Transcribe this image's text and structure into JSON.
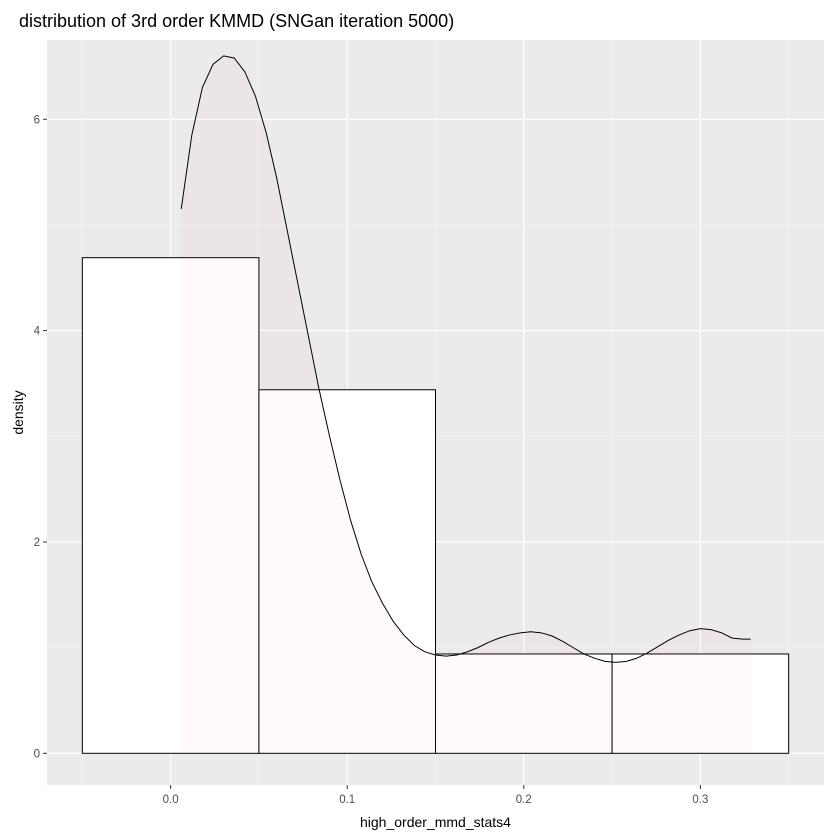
{
  "chart_data": {
    "type": "histogram",
    "title": "distribution of 3rd order KMMD (SNGan iteration 5000)",
    "xlabel": "high_order_mmd_stats4",
    "ylabel": "density",
    "xlim": [
      -0.07,
      0.37
    ],
    "ylim": [
      -0.3,
      6.75
    ],
    "x_ticks": [
      0.0,
      0.1,
      0.2,
      0.3
    ],
    "x_tick_labels": [
      "0.0",
      "0.1",
      "0.2",
      "0.3"
    ],
    "x_minor_ticks": [
      -0.05,
      0.05,
      0.15,
      0.25,
      0.35
    ],
    "y_ticks": [
      0,
      2,
      4,
      6
    ],
    "y_tick_labels": [
      "0",
      "2",
      "4",
      "6"
    ],
    "y_minor_ticks": [
      1,
      3,
      5
    ],
    "grid": true,
    "bins": [
      {
        "x0": -0.05,
        "x1": 0.05,
        "density": 4.69
      },
      {
        "x0": 0.05,
        "x1": 0.15,
        "density": 3.44
      },
      {
        "x0": 0.15,
        "x1": 0.25,
        "density": 0.94
      },
      {
        "x0": 0.25,
        "x1": 0.35,
        "density": 0.94
      }
    ],
    "density_curve": {
      "x": [
        0.006,
        0.012,
        0.018,
        0.024,
        0.03,
        0.036,
        0.042,
        0.048,
        0.054,
        0.06,
        0.066,
        0.072,
        0.078,
        0.084,
        0.09,
        0.096,
        0.102,
        0.108,
        0.114,
        0.12,
        0.126,
        0.132,
        0.138,
        0.144,
        0.15,
        0.156,
        0.162,
        0.168,
        0.174,
        0.18,
        0.186,
        0.192,
        0.198,
        0.204,
        0.21,
        0.216,
        0.222,
        0.228,
        0.234,
        0.24,
        0.246,
        0.252,
        0.258,
        0.264,
        0.27,
        0.276,
        0.282,
        0.288,
        0.294,
        0.3,
        0.306,
        0.312,
        0.318,
        0.324,
        0.3285
      ],
      "y": [
        5.15,
        5.85,
        6.3,
        6.52,
        6.6,
        6.58,
        6.45,
        6.22,
        5.88,
        5.45,
        4.95,
        4.45,
        3.95,
        3.45,
        3.0,
        2.58,
        2.2,
        1.88,
        1.62,
        1.42,
        1.25,
        1.12,
        1.02,
        0.96,
        0.93,
        0.92,
        0.93,
        0.96,
        1.0,
        1.05,
        1.09,
        1.12,
        1.14,
        1.15,
        1.14,
        1.11,
        1.06,
        1.0,
        0.94,
        0.9,
        0.87,
        0.86,
        0.87,
        0.9,
        0.95,
        1.01,
        1.07,
        1.12,
        1.16,
        1.18,
        1.17,
        1.14,
        1.09,
        1.08,
        1.08
      ]
    },
    "colors": {
      "panel_background": "#ebebeb",
      "major_grid": "#ffffff",
      "minor_grid": "#f4f4f4",
      "bar_fill": "#ffffff",
      "bar_outline": "#000000",
      "density_fill": "#ff6666",
      "density_fill_opacity": 0.04,
      "density_line": "#000000",
      "tick_label": "#4d4d4d",
      "tick_mark": "#333333"
    }
  }
}
